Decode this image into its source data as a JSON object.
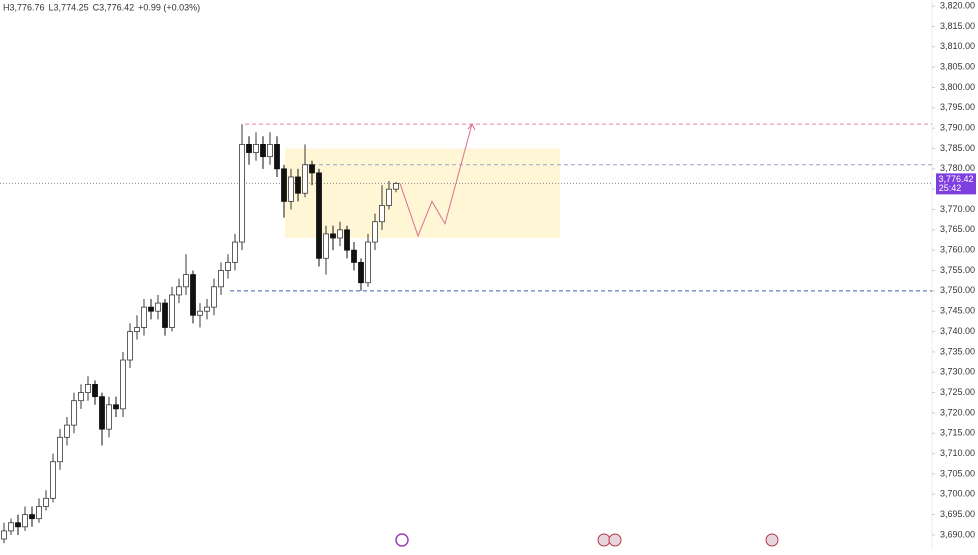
{
  "chart_data": {
    "type": "candlestick",
    "header": [
      "H3,776.76",
      "L3,774.25",
      "C3,776.42",
      "+0.99 (+0.03%)"
    ],
    "open": [
      3689,
      3691,
      3693,
      3692,
      3695,
      3694,
      3697,
      3699,
      3708,
      3714,
      3717,
      3723,
      3725,
      3727,
      3724,
      3716,
      3722,
      3721,
      3733,
      3740,
      3741,
      3746,
      3745,
      3747,
      3741,
      3749,
      3751,
      3754,
      3744,
      3745,
      3746,
      3751,
      3755,
      3757,
      3762,
      3786,
      3784,
      3786,
      3783,
      3786,
      3780,
      3772,
      3778,
      3774,
      3781,
      3779,
      3758,
      3764,
      3763,
      3765,
      3760,
      3757,
      3752,
      3762,
      3767,
      3771,
      3775
    ],
    "high": [
      3693,
      3694,
      3695,
      3697,
      3697,
      3699,
      3701,
      3710,
      3716,
      3719,
      3725,
      3727,
      3729,
      3728,
      3725,
      3724,
      3724,
      3735,
      3742,
      3744,
      3748,
      3748,
      3749,
      3748,
      3751,
      3753,
      3759,
      3755,
      3747,
      3748,
      3753,
      3757,
      3759,
      3764,
      3791,
      3788,
      3789,
      3788,
      3789,
      3788,
      3781,
      3780,
      3780,
      3786,
      3782,
      3780,
      3766,
      3766,
      3767,
      3766,
      3762,
      3758,
      3764,
      3769,
      3776,
      3777,
      3776.76
    ],
    "low": [
      3688,
      3690,
      3690,
      3691,
      3692,
      3693,
      3696,
      3698,
      3706,
      3712,
      3715,
      3721,
      3723,
      3722,
      3712,
      3714,
      3719,
      3719,
      3731,
      3738,
      3739,
      3743,
      3743,
      3739,
      3740,
      3747,
      3749,
      3742,
      3741,
      3743,
      3744,
      3749,
      3753,
      3755,
      3760,
      3781,
      3782,
      3780,
      3781,
      3778,
      3768,
      3770,
      3772,
      3773,
      3776,
      3756,
      3754,
      3760,
      3761,
      3758,
      3755,
      3750,
      3751,
      3760,
      3765,
      3770,
      3774.25
    ],
    "close": [
      3691,
      3693,
      3692,
      3695,
      3694,
      3697,
      3699,
      3708,
      3714,
      3717,
      3723,
      3725,
      3727,
      3724,
      3716,
      3722,
      3721,
      3733,
      3740,
      3741,
      3746,
      3745,
      3747,
      3741,
      3749,
      3751,
      3754,
      3744,
      3745,
      3746,
      3751,
      3755,
      3757,
      3762,
      3786,
      3784,
      3786,
      3783,
      3786,
      3780,
      3772,
      3778,
      3774,
      3781,
      3779,
      3758,
      3764,
      3763,
      3765,
      3760,
      3757,
      3752,
      3762,
      3767,
      3771,
      3775,
      3776.42
    ],
    "up_color": "#3a3a3a",
    "down_color": "#111111",
    "ylim": [
      3686.3,
      3821.5
    ],
    "yticks": [
      {
        "value": 3690,
        "label": "3,690.00"
      },
      {
        "value": 3695,
        "label": "3,695.00"
      },
      {
        "value": 3700,
        "label": "3,700.00"
      },
      {
        "value": 3705,
        "label": "3,705.00"
      },
      {
        "value": 3710,
        "label": "3,710.00"
      },
      {
        "value": 3715,
        "label": "3,715.00"
      },
      {
        "value": 3720,
        "label": "3,720.00"
      },
      {
        "value": 3725,
        "label": "3,725.00"
      },
      {
        "value": 3730,
        "label": "3,730.00"
      },
      {
        "value": 3735,
        "label": "3,735.00"
      },
      {
        "value": 3740,
        "label": "3,740.00"
      },
      {
        "value": 3745,
        "label": "3,745.00"
      },
      {
        "value": 3750,
        "label": "3,750.00"
      },
      {
        "value": 3755,
        "label": "3,755.00"
      },
      {
        "value": 3760,
        "label": "3,760.00"
      },
      {
        "value": 3765,
        "label": "3,765.00"
      },
      {
        "value": 3770,
        "label": "3,770.00"
      },
      {
        "value": 3775,
        "label": "3,775.00"
      },
      {
        "value": 3780,
        "label": "3,780.00"
      },
      {
        "value": 3785,
        "label": "3,785.00"
      },
      {
        "value": 3790,
        "label": "3,790.00"
      },
      {
        "value": 3795,
        "label": "3,795.00"
      },
      {
        "value": 3800,
        "label": "3,800.00"
      },
      {
        "value": 3805,
        "label": "3,805.00"
      },
      {
        "value": 3810,
        "label": "3,810.00"
      },
      {
        "value": 3815,
        "label": "3,815.00"
      },
      {
        "value": 3820,
        "label": "3,820.00"
      }
    ],
    "last_price": {
      "value": 3776.42,
      "label": "3,776.42",
      "color": "#7e3fe0"
    },
    "countdown": "25:42",
    "levels": [
      {
        "value": 3791,
        "color": "#e8809a"
      },
      {
        "value": 3781,
        "color": "#9aa6c8"
      },
      {
        "value": 3750,
        "color": "#3d5fb0"
      }
    ],
    "zone": {
      "top": 3785,
      "bottom": 3763,
      "color": "#fff6d6"
    },
    "projection": {
      "values": [
        3776.42,
        3763.5,
        3772,
        3766.5,
        3791
      ],
      "color": "#d9708c"
    }
  }
}
